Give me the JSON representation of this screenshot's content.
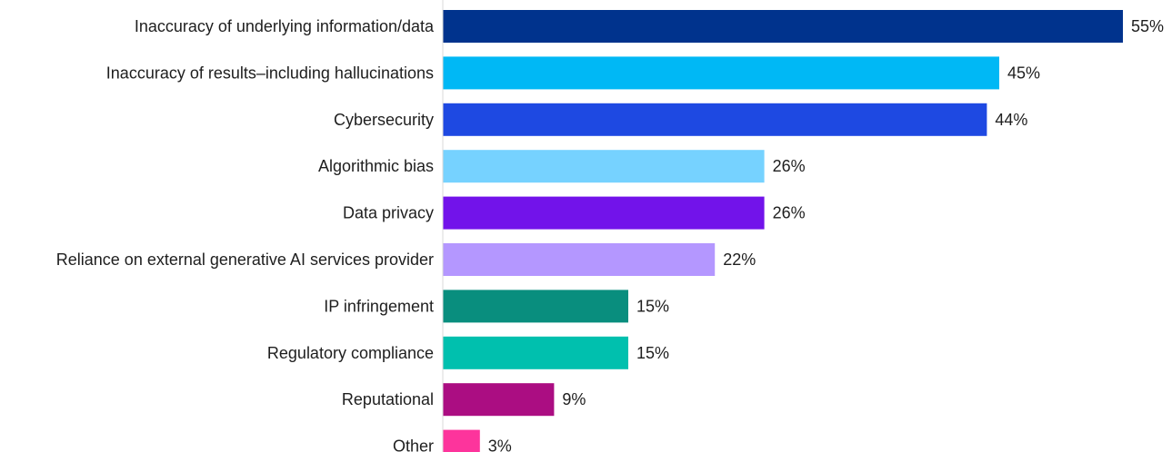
{
  "chart_data": {
    "type": "bar",
    "orientation": "horizontal",
    "categories": [
      "Inaccuracy of underlying information/data",
      "Inaccuracy of results–including hallucinations",
      "Cybersecurity",
      "Algorithmic bias",
      "Data privacy",
      "Reliance on external generative AI services provider",
      "IP infringement",
      "Regulatory compliance",
      "Reputational",
      "Other"
    ],
    "values": [
      55,
      45,
      44,
      26,
      26,
      22,
      15,
      15,
      9,
      3
    ],
    "value_labels": [
      "55%",
      "45%",
      "44%",
      "26%",
      "26%",
      "22%",
      "15%",
      "15%",
      "9%",
      "3%"
    ],
    "colors": [
      "#00338D",
      "#00B8F5",
      "#1E49E2",
      "#76D2FF",
      "#7213EA",
      "#B497FF",
      "#098E7E",
      "#00C0AE",
      "#AB0D82",
      "#FD349C"
    ],
    "unit": "%",
    "xlim": [
      0,
      55
    ],
    "grid": false,
    "legend": "none"
  }
}
